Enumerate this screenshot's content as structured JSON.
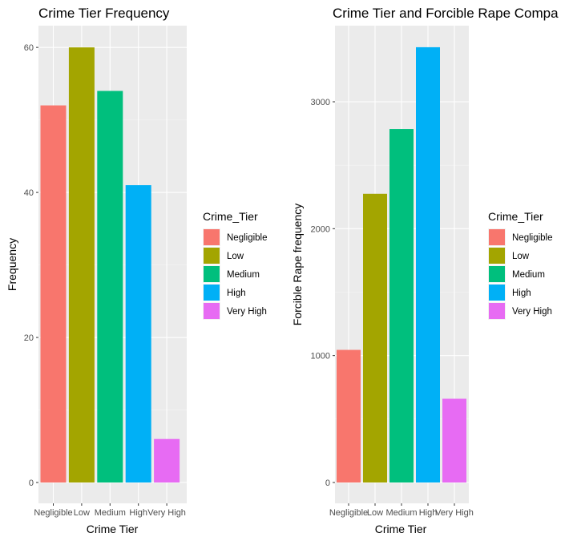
{
  "chart_data": [
    {
      "type": "bar",
      "title": "Crime Tier Frequency",
      "xlabel": "Crime Tier",
      "ylabel": "Frequency",
      "categories": [
        "Negligible",
        "Low",
        "Medium",
        "High",
        "Very High"
      ],
      "values": [
        52,
        60,
        54,
        41,
        6
      ],
      "ylim": [
        0,
        63
      ],
      "yticks": [
        0,
        20,
        40,
        60
      ],
      "colors": [
        "#F8766D",
        "#A3A500",
        "#00BF7D",
        "#00B0F6",
        "#E76BF3"
      ],
      "grid": true,
      "legend": {
        "title": "Crime_Tier",
        "position": "right",
        "entries": [
          "Negligible",
          "Low",
          "Medium",
          "High",
          "Very High"
        ]
      }
    },
    {
      "type": "bar",
      "title": "Crime Tier and Forcible Rape Compa",
      "xlabel": "Crime Tier",
      "ylabel": "Forcible Rape frequency",
      "categories": [
        "Negligible",
        "Low",
        "Medium",
        "High",
        "Very High"
      ],
      "values": [
        1045,
        2275,
        2785,
        3430,
        660
      ],
      "ylim": [
        0,
        3600
      ],
      "yticks": [
        0,
        1000,
        2000,
        3000
      ],
      "colors": [
        "#F8766D",
        "#A3A500",
        "#00BF7D",
        "#00B0F6",
        "#E76BF3"
      ],
      "grid": true,
      "legend": {
        "title": "Crime_Tier",
        "position": "right",
        "entries": [
          "Negligible",
          "Low",
          "Medium",
          "High",
          "Very High"
        ]
      }
    }
  ]
}
